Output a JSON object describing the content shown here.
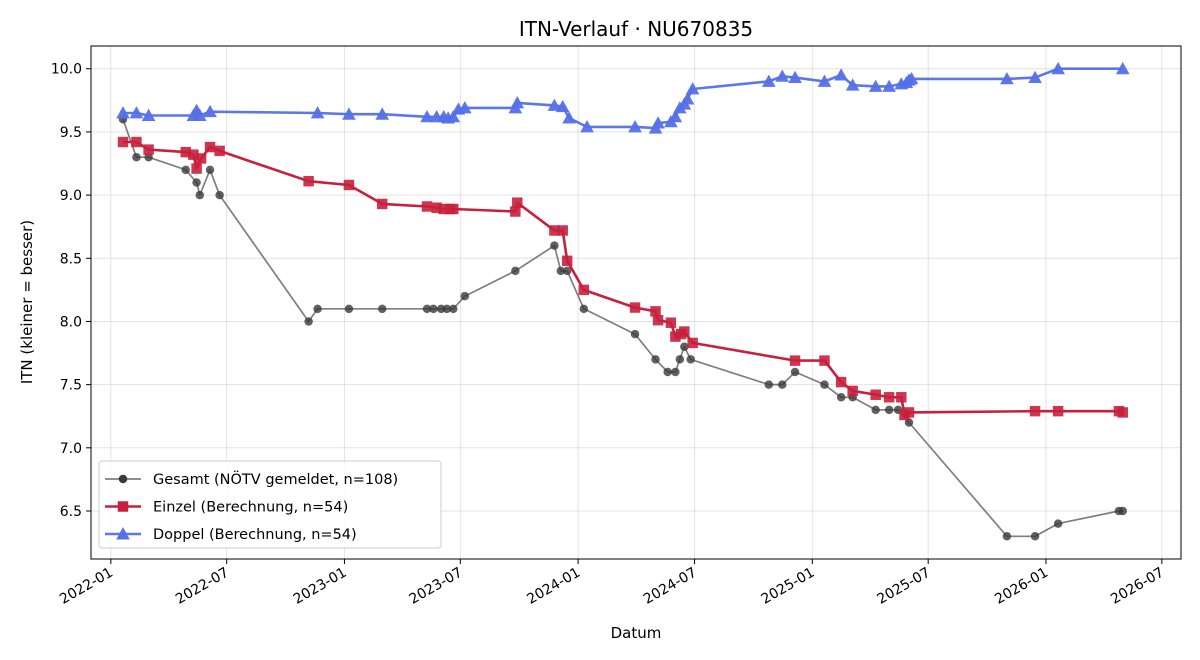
{
  "chart_data": {
    "type": "line",
    "title": "ITN-Verlauf · NU670835",
    "xlabel": "Datum",
    "ylabel": "ITN  (kleiner = besser)",
    "xlim": [
      "2021-12-01",
      "2026-07-31"
    ],
    "ylim": [
      6.12,
      10.18
    ],
    "x_ticks": [
      "2022-01",
      "2022-07",
      "2023-01",
      "2023-07",
      "2024-01",
      "2024-07",
      "2025-01",
      "2025-07",
      "2026-01",
      "2026-07"
    ],
    "y_ticks": [
      "6.5",
      "7.0",
      "7.5",
      "8.0",
      "8.5",
      "9.0",
      "9.5",
      "10.0"
    ],
    "grid": true,
    "legend_position": "lower-left",
    "series": [
      {
        "name": "Gesamt (NÖTV gemeldet, n=108)",
        "color": "#3a3a3a",
        "marker": "circle",
        "points": [
          [
            "2022-01-20",
            9.6
          ],
          [
            "2022-02-10",
            9.3
          ],
          [
            "2022-03-01",
            9.3
          ],
          [
            "2022-04-28",
            9.2
          ],
          [
            "2022-05-15",
            9.1
          ],
          [
            "2022-05-20",
            9.0
          ],
          [
            "2022-06-05",
            9.2
          ],
          [
            "2022-06-20",
            9.0
          ],
          [
            "2022-11-06",
            8.0
          ],
          [
            "2022-11-20",
            8.1
          ],
          [
            "2023-01-08",
            8.1
          ],
          [
            "2023-03-01",
            8.1
          ],
          [
            "2023-05-10",
            8.1
          ],
          [
            "2023-05-20",
            8.1
          ],
          [
            "2023-06-01",
            8.1
          ],
          [
            "2023-06-10",
            8.1
          ],
          [
            "2023-06-20",
            8.1
          ],
          [
            "2023-07-08",
            8.2
          ],
          [
            "2023-09-25",
            8.4
          ],
          [
            "2023-11-25",
            8.6
          ],
          [
            "2023-12-05",
            8.4
          ],
          [
            "2023-12-15",
            8.4
          ],
          [
            "2024-01-10",
            8.1
          ],
          [
            "2024-03-30",
            7.9
          ],
          [
            "2024-05-01",
            7.7
          ],
          [
            "2024-05-20",
            7.6
          ],
          [
            "2024-06-01",
            7.6
          ],
          [
            "2024-06-08",
            7.7
          ],
          [
            "2024-06-15",
            7.8
          ],
          [
            "2024-06-25",
            7.7
          ],
          [
            "2024-10-25",
            7.5
          ],
          [
            "2024-11-15",
            7.5
          ],
          [
            "2024-12-05",
            7.6
          ],
          [
            "2025-01-20",
            7.5
          ],
          [
            "2025-02-15",
            7.4
          ],
          [
            "2025-03-05",
            7.4
          ],
          [
            "2025-04-10",
            7.3
          ],
          [
            "2025-05-01",
            7.3
          ],
          [
            "2025-05-15",
            7.3
          ],
          [
            "2025-06-01",
            7.2
          ],
          [
            "2025-11-01",
            6.3
          ],
          [
            "2025-12-15",
            6.3
          ],
          [
            "2026-01-20",
            6.4
          ],
          [
            "2026-04-25",
            6.5
          ],
          [
            "2026-05-01",
            6.5
          ]
        ]
      },
      {
        "name": "Einzel (Berechnung, n=54)",
        "color": "#c8203c",
        "marker": "square",
        "points": [
          [
            "2022-01-20",
            9.42
          ],
          [
            "2022-02-10",
            9.42
          ],
          [
            "2022-03-01",
            9.36
          ],
          [
            "2022-04-28",
            9.34
          ],
          [
            "2022-05-10",
            9.32
          ],
          [
            "2022-05-15",
            9.21
          ],
          [
            "2022-05-22",
            9.29
          ],
          [
            "2022-06-05",
            9.38
          ],
          [
            "2022-06-20",
            9.35
          ],
          [
            "2022-11-06",
            9.11
          ],
          [
            "2023-01-08",
            9.08
          ],
          [
            "2023-03-01",
            8.93
          ],
          [
            "2023-05-10",
            8.91
          ],
          [
            "2023-05-25",
            8.9
          ],
          [
            "2023-06-05",
            8.89
          ],
          [
            "2023-06-15",
            8.89
          ],
          [
            "2023-06-20",
            8.89
          ],
          [
            "2023-09-25",
            8.87
          ],
          [
            "2023-09-28",
            8.94
          ],
          [
            "2023-11-25",
            8.72
          ],
          [
            "2023-12-08",
            8.72
          ],
          [
            "2023-12-15",
            8.48
          ],
          [
            "2024-01-10",
            8.25
          ],
          [
            "2024-03-30",
            8.11
          ],
          [
            "2024-05-01",
            8.08
          ],
          [
            "2024-05-05",
            8.01
          ],
          [
            "2024-05-25",
            7.99
          ],
          [
            "2024-06-01",
            7.88
          ],
          [
            "2024-06-10",
            7.9
          ],
          [
            "2024-06-15",
            7.92
          ],
          [
            "2024-06-28",
            7.83
          ],
          [
            "2024-12-05",
            7.69
          ],
          [
            "2025-01-20",
            7.69
          ],
          [
            "2025-02-15",
            7.52
          ],
          [
            "2025-03-05",
            7.45
          ],
          [
            "2025-04-10",
            7.42
          ],
          [
            "2025-05-01",
            7.4
          ],
          [
            "2025-05-20",
            7.4
          ],
          [
            "2025-05-25",
            7.26
          ],
          [
            "2025-06-01",
            7.28
          ],
          [
            "2025-12-15",
            7.29
          ],
          [
            "2026-01-20",
            7.29
          ],
          [
            "2026-04-25",
            7.29
          ],
          [
            "2026-05-01",
            7.28
          ]
        ]
      },
      {
        "name": "Doppel (Berechnung, n=54)",
        "color": "#5470e8",
        "marker": "triangle",
        "points": [
          [
            "2022-01-20",
            9.65
          ],
          [
            "2022-02-10",
            9.65
          ],
          [
            "2022-03-01",
            9.63
          ],
          [
            "2022-05-10",
            9.63
          ],
          [
            "2022-05-15",
            9.67
          ],
          [
            "2022-05-20",
            9.63
          ],
          [
            "2022-06-05",
            9.66
          ],
          [
            "2022-11-20",
            9.65
          ],
          [
            "2023-01-08",
            9.64
          ],
          [
            "2023-03-01",
            9.64
          ],
          [
            "2023-05-10",
            9.62
          ],
          [
            "2023-05-25",
            9.62
          ],
          [
            "2023-06-05",
            9.62
          ],
          [
            "2023-06-12",
            9.61
          ],
          [
            "2023-06-20",
            9.62
          ],
          [
            "2023-06-28",
            9.68
          ],
          [
            "2023-07-08",
            9.69
          ],
          [
            "2023-09-25",
            9.69
          ],
          [
            "2023-09-28",
            9.73
          ],
          [
            "2023-11-25",
            9.71
          ],
          [
            "2023-12-08",
            9.7
          ],
          [
            "2023-12-18",
            9.61
          ],
          [
            "2024-01-15",
            9.54
          ],
          [
            "2024-03-30",
            9.54
          ],
          [
            "2024-05-01",
            9.53
          ],
          [
            "2024-05-05",
            9.57
          ],
          [
            "2024-05-25",
            9.58
          ],
          [
            "2024-06-01",
            9.62
          ],
          [
            "2024-06-08",
            9.69
          ],
          [
            "2024-06-15",
            9.72
          ],
          [
            "2024-06-20",
            9.76
          ],
          [
            "2024-06-28",
            9.84
          ],
          [
            "2024-10-25",
            9.9
          ],
          [
            "2024-11-15",
            9.94
          ],
          [
            "2024-12-05",
            9.93
          ],
          [
            "2025-01-20",
            9.9
          ],
          [
            "2025-02-15",
            9.95
          ],
          [
            "2025-03-05",
            9.87
          ],
          [
            "2025-04-10",
            9.86
          ],
          [
            "2025-05-01",
            9.86
          ],
          [
            "2025-05-20",
            9.88
          ],
          [
            "2025-05-28",
            9.89
          ],
          [
            "2025-06-01",
            9.91
          ],
          [
            "2025-06-05",
            9.92
          ],
          [
            "2025-11-01",
            9.92
          ],
          [
            "2025-12-15",
            9.93
          ],
          [
            "2026-01-20",
            10.0
          ],
          [
            "2026-05-01",
            10.0
          ]
        ]
      }
    ]
  }
}
